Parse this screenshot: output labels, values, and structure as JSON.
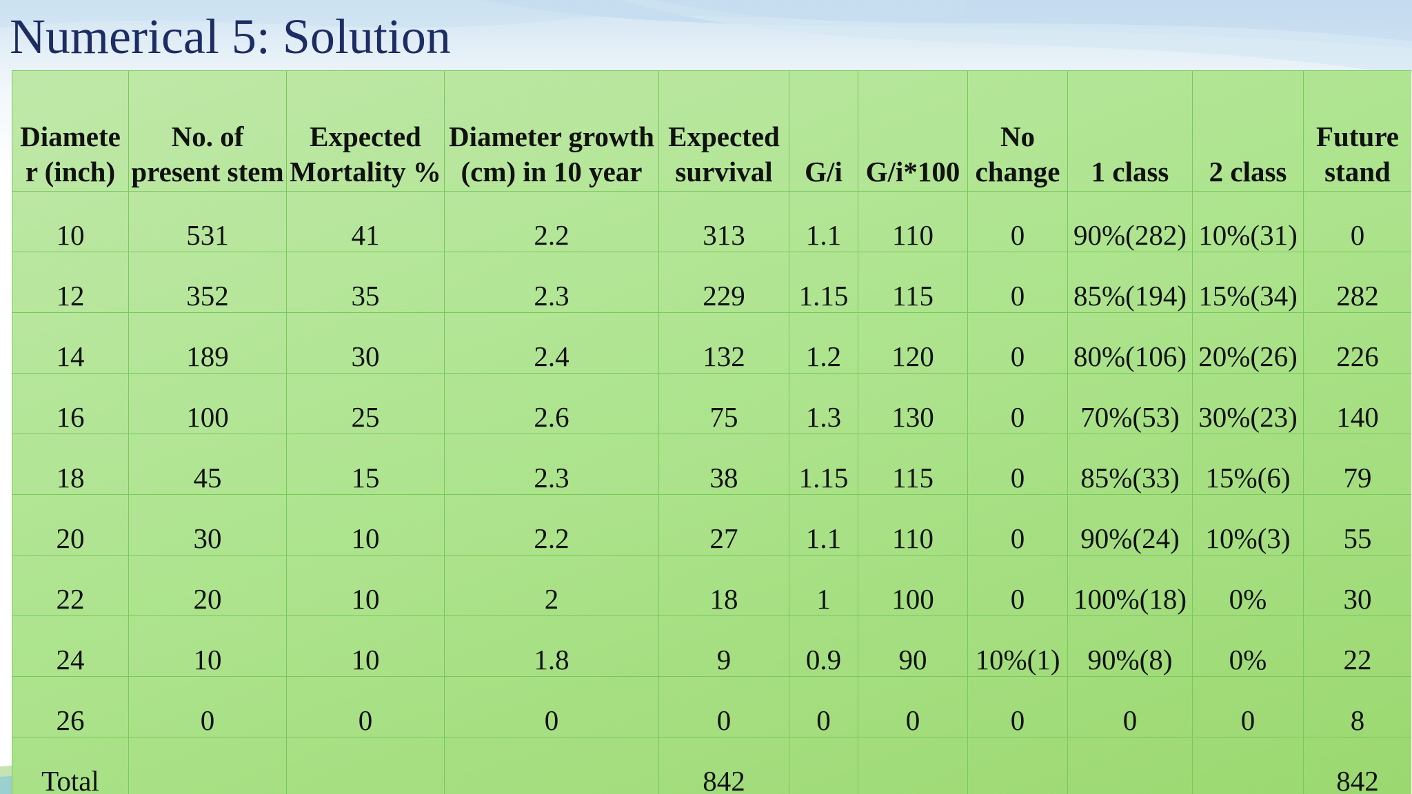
{
  "slide": {
    "title": "Numerical 5: Solution"
  },
  "table": {
    "headers": [
      "Diamete r (inch)",
      "No. of present stem",
      "Expected Mortality %",
      "Diameter growth (cm) in 10 year",
      "Expected survival",
      "G/i",
      "G/i*100",
      "No change",
      "1 class",
      "2 class",
      "Future stand"
    ],
    "rows": [
      [
        "10",
        "531",
        "41",
        "2.2",
        "313",
        "1.1",
        "110",
        "0",
        "90%(282)",
        "10%(31)",
        "0"
      ],
      [
        "12",
        "352",
        "35",
        "2.3",
        "229",
        "1.15",
        "115",
        "0",
        "85%(194)",
        "15%(34)",
        "282"
      ],
      [
        "14",
        "189",
        "30",
        "2.4",
        "132",
        "1.2",
        "120",
        "0",
        "80%(106)",
        "20%(26)",
        "226"
      ],
      [
        "16",
        "100",
        "25",
        "2.6",
        "75",
        "1.3",
        "130",
        "0",
        "70%(53)",
        "30%(23)",
        "140"
      ],
      [
        "18",
        "45",
        "15",
        "2.3",
        "38",
        "1.15",
        "115",
        "0",
        "85%(33)",
        "15%(6)",
        "79"
      ],
      [
        "20",
        "30",
        "10",
        "2.2",
        "27",
        "1.1",
        "110",
        "0",
        "90%(24)",
        "10%(3)",
        "55"
      ],
      [
        "22",
        "20",
        "10",
        "2",
        "18",
        "1",
        "100",
        "0",
        "100%(18)",
        "0%",
        "30"
      ],
      [
        "24",
        "10",
        "10",
        "1.8",
        "9",
        "0.9",
        "90",
        "10%(1)",
        "90%(8)",
        "0%",
        "22"
      ],
      [
        "26",
        "0",
        "0",
        "0",
        "0",
        "0",
        "0",
        "0",
        "0",
        "0",
        "8"
      ],
      [
        "Total",
        "",
        "",
        "",
        "842",
        "",
        "",
        "",
        "",
        "",
        "842"
      ]
    ]
  },
  "colors": {
    "title": "#1d2c63",
    "table_fill": "#aee48f",
    "table_border": "#78c95a",
    "header_background": "#cfe3f2"
  }
}
